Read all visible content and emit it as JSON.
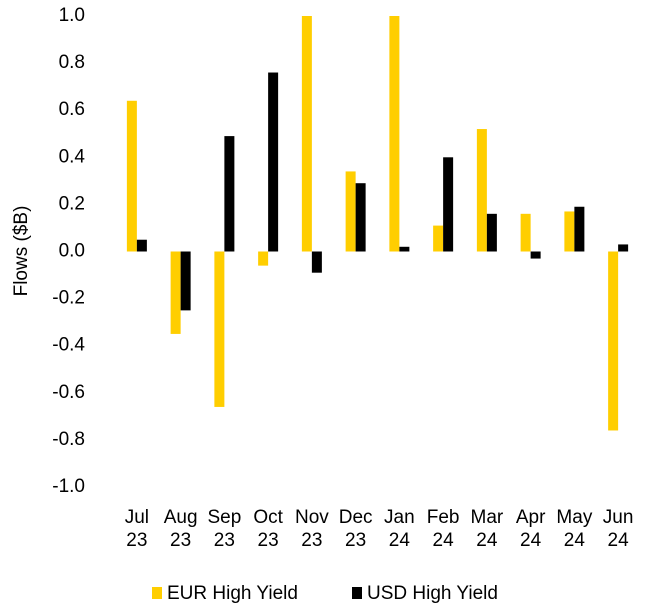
{
  "chart_data": {
    "type": "bar",
    "ylabel": "Flows ($B)",
    "categories": [
      "Jul 23",
      "Aug 23",
      "Sep 23",
      "Oct 23",
      "Nov 23",
      "Dec 23",
      "Jan 24",
      "Feb 24",
      "Mar 24",
      "Apr 24",
      "May 24",
      "Jun 24"
    ],
    "series": [
      {
        "name": "EUR High Yield",
        "color": "#ffce00",
        "values": [
          0.64,
          -0.35,
          -0.66,
          -0.06,
          1.0,
          0.34,
          1.0,
          0.11,
          0.52,
          0.16,
          0.17,
          -0.76
        ]
      },
      {
        "name": "USD High Yield",
        "color": "#000000",
        "values": [
          0.05,
          -0.25,
          0.49,
          0.76,
          -0.09,
          0.29,
          0.02,
          0.4,
          0.16,
          -0.03,
          0.19,
          0.03
        ]
      }
    ],
    "ylim": [
      -1.0,
      1.0
    ],
    "yticks": [
      {
        "value": 1.0,
        "label": "1.0"
      },
      0.8,
      0.6,
      0.4,
      0.2,
      {
        "value": 0,
        "label": "0.0"
      },
      -0.2,
      -0.4,
      -0.6,
      -0.8,
      {
        "value": -1.0,
        "label": "-1.0"
      }
    ],
    "negative_tick_color": "#e8202a",
    "grid": false,
    "legend": "bottom"
  }
}
